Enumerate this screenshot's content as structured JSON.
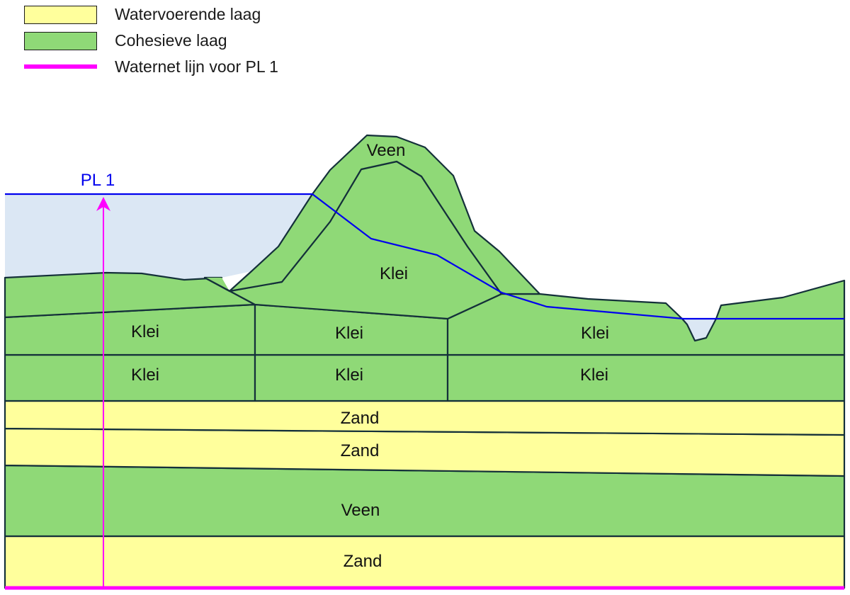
{
  "legend": {
    "items": [
      {
        "label": "Watervoerende laag",
        "color": "#ffff9c",
        "kind": "box"
      },
      {
        "label": "Cohesieve laag",
        "color": "#8fd977",
        "kind": "box"
      },
      {
        "label": "Waternet lijn voor PL 1",
        "color": "#ff00ff",
        "kind": "line"
      }
    ]
  },
  "colors": {
    "cohesive": "#8fd977",
    "aquifer": "#ffff9c",
    "water": "#dbe7f4",
    "outline": "#14303a",
    "phreatic": "#0000ee",
    "waternet": "#ff00ff"
  },
  "pl_label": "PL 1",
  "labels": {
    "dike_veen": "Veen",
    "dike_klei": "Klei",
    "klei_1_left": "Klei",
    "klei_1_mid": "Klei",
    "klei_1_right": "Klei",
    "klei_2_left": "Klei",
    "klei_2_mid": "Klei",
    "klei_2_right": "Klei",
    "zand_1": "Zand",
    "zand_2": "Zand",
    "veen_deep": "Veen",
    "zand_3": "Zand"
  }
}
